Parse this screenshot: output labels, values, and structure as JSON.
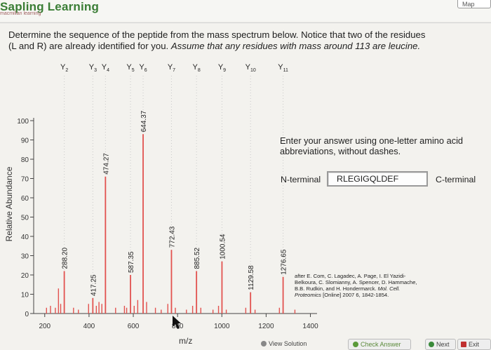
{
  "header": {
    "brand": "Sapling Learning",
    "brand_sub": "macmillan learning",
    "map_label": "Map"
  },
  "question": {
    "line1": "Determine the sequence of the peptide from the mass spectrum below. Notice that two of the residues",
    "line2_plain": "(L and R) are already identified for you.",
    "line2_italic": "Assume that any residues with mass around 113 are leucine."
  },
  "chart_data": {
    "type": "bar",
    "xlabel": "m/z",
    "ylabel": "Relative Abundance",
    "xlim": [
      150,
      1430
    ],
    "ylim": [
      0,
      100
    ],
    "x_ticks": [
      200,
      400,
      600,
      800,
      1000,
      1200,
      1400
    ],
    "y_ticks": [
      0,
      10,
      20,
      30,
      40,
      50,
      60,
      70,
      80,
      90,
      100
    ],
    "ion_labels": [
      {
        "label": "Y2",
        "mz": 288.2
      },
      {
        "label": "Y3",
        "mz": 417.25
      },
      {
        "label": "Y4",
        "mz": 474.27
      },
      {
        "label": "Y5",
        "mz": 587.35
      },
      {
        "label": "Y6",
        "mz": 644.37
      },
      {
        "label": "Y7",
        "mz": 772.43
      },
      {
        "label": "Y8",
        "mz": 885.52
      },
      {
        "label": "Y9",
        "mz": 1000.54
      },
      {
        "label": "Y10",
        "mz": 1129.58
      },
      {
        "label": "Y11",
        "mz": 1276.65
      }
    ],
    "peaks": [
      {
        "mz": 288.2,
        "value": 22,
        "label": "288.20"
      },
      {
        "mz": 417.25,
        "value": 8,
        "label": "417.25"
      },
      {
        "mz": 474.27,
        "value": 71,
        "label": "474.27"
      },
      {
        "mz": 587.35,
        "value": 20,
        "label": "587.35"
      },
      {
        "mz": 644.37,
        "value": 93,
        "label": "644.37"
      },
      {
        "mz": 772.43,
        "value": 33,
        "label": "772.43"
      },
      {
        "mz": 885.52,
        "value": 22,
        "label": "885.52"
      },
      {
        "mz": 1000.54,
        "value": 27,
        "label": "1000.54"
      },
      {
        "mz": 1129.58,
        "value": 11,
        "label": "1129.58"
      },
      {
        "mz": 1276.65,
        "value": 19,
        "label": "1276.65"
      }
    ],
    "minor_peaks": [
      {
        "mz": 208,
        "value": 3
      },
      {
        "mz": 226,
        "value": 4
      },
      {
        "mz": 248,
        "value": 3
      },
      {
        "mz": 262,
        "value": 13
      },
      {
        "mz": 272,
        "value": 5
      },
      {
        "mz": 330,
        "value": 3
      },
      {
        "mz": 352,
        "value": 2
      },
      {
        "mz": 398,
        "value": 5
      },
      {
        "mz": 433,
        "value": 4
      },
      {
        "mz": 445,
        "value": 6
      },
      {
        "mz": 458,
        "value": 5
      },
      {
        "mz": 520,
        "value": 3
      },
      {
        "mz": 560,
        "value": 4
      },
      {
        "mz": 570,
        "value": 3
      },
      {
        "mz": 604,
        "value": 4
      },
      {
        "mz": 620,
        "value": 7
      },
      {
        "mz": 660,
        "value": 6
      },
      {
        "mz": 700,
        "value": 3
      },
      {
        "mz": 726,
        "value": 2
      },
      {
        "mz": 756,
        "value": 5
      },
      {
        "mz": 790,
        "value": 3
      },
      {
        "mz": 840,
        "value": 2
      },
      {
        "mz": 868,
        "value": 4
      },
      {
        "mz": 905,
        "value": 3
      },
      {
        "mz": 960,
        "value": 2
      },
      {
        "mz": 985,
        "value": 4
      },
      {
        "mz": 1020,
        "value": 2
      },
      {
        "mz": 1108,
        "value": 3
      },
      {
        "mz": 1150,
        "value": 2
      },
      {
        "mz": 1260,
        "value": 3
      },
      {
        "mz": 1330,
        "value": 2
      }
    ],
    "label_color": "#e06060",
    "peak_color": "#e2524f"
  },
  "answer_panel": {
    "instruction": "Enter your answer using one-letter amino acid abbreviations, without dashes.",
    "n_terminal": "N-terminal",
    "c_terminal": "C-terminal",
    "answer_value": "RLEGIGQLDEF"
  },
  "citation": {
    "line1": "after E. Com, C. Lagadec, A. Page, I. El Yazidi-",
    "line2": "Belkoura, C. Slomianny, A. Spencer, D. Hammache,",
    "line3_plain": "B.B. Rudkin, and H. Hondermarck.",
    "line3_italic": "Mol. Cell.",
    "line4_italic": "Proteomics",
    "line4_plain": "[Online] 2007 6, 1842-1854."
  },
  "footer": {
    "solution_label": "View Solution",
    "check_label": "Check Answer",
    "next_label": "Next",
    "exit_label": "Exit"
  }
}
